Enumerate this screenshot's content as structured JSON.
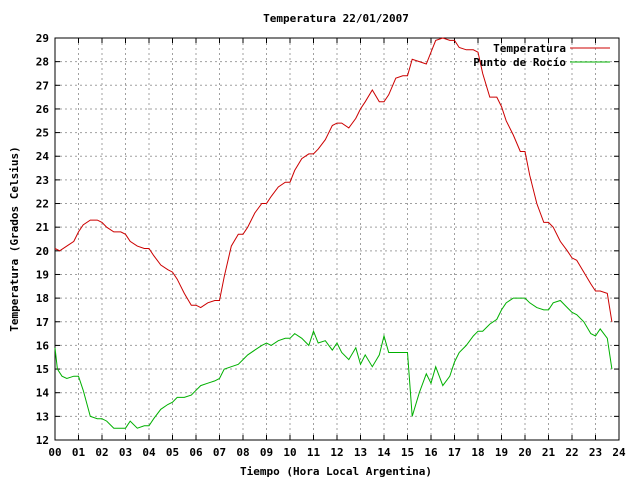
{
  "chart_data": {
    "type": "line",
    "title": "Temperatura 22/01/2007",
    "xlabel": "Tiempo (Hora Local Argentina)",
    "ylabel": "Temperatura (Grados Celsius)",
    "xlim": [
      0,
      24
    ],
    "ylim": [
      12,
      29
    ],
    "xticks": [
      "00",
      "01",
      "02",
      "03",
      "04",
      "05",
      "06",
      "07",
      "08",
      "09",
      "10",
      "11",
      "12",
      "13",
      "14",
      "15",
      "16",
      "17",
      "18",
      "19",
      "20",
      "21",
      "22",
      "23",
      "24"
    ],
    "yticks": [
      "12",
      "13",
      "14",
      "15",
      "16",
      "17",
      "18",
      "19",
      "20",
      "21",
      "22",
      "23",
      "24",
      "25",
      "26",
      "27",
      "28",
      "29"
    ],
    "grid": true,
    "legend_position": "top-right",
    "series": [
      {
        "name": "Temperatura",
        "color": "#cc0000",
        "x": [
          0,
          0.2,
          0.5,
          0.8,
          1.0,
          1.2,
          1.5,
          1.8,
          2.0,
          2.2,
          2.5,
          2.8,
          3.0,
          3.2,
          3.5,
          3.8,
          4.0,
          4.2,
          4.5,
          4.8,
          5.0,
          5.2,
          5.5,
          5.8,
          6.0,
          6.2,
          6.5,
          6.8,
          7.0,
          7.2,
          7.5,
          7.8,
          8.0,
          8.2,
          8.5,
          8.8,
          9.0,
          9.2,
          9.5,
          9.8,
          10.0,
          10.2,
          10.5,
          10.8,
          11.0,
          11.2,
          11.5,
          11.8,
          12.0,
          12.2,
          12.5,
          12.8,
          13.0,
          13.2,
          13.5,
          13.8,
          14.0,
          14.2,
          14.5,
          14.8,
          15.0,
          15.2,
          15.5,
          15.8,
          16.0,
          16.2,
          16.5,
          16.8,
          17.0,
          17.2,
          17.5,
          17.8,
          18.0,
          18.2,
          18.5,
          18.8,
          19.0,
          19.2,
          19.5,
          19.8,
          20.0,
          20.2,
          20.5,
          20.8,
          21.0,
          21.2,
          21.5,
          21.8,
          22.0,
          22.2,
          22.5,
          22.8,
          23.0,
          23.2,
          23.5,
          23.7
        ],
        "y": [
          20.1,
          20.0,
          20.2,
          20.4,
          20.8,
          21.1,
          21.3,
          21.3,
          21.2,
          21.0,
          20.8,
          20.8,
          20.7,
          20.4,
          20.2,
          20.1,
          20.1,
          19.8,
          19.4,
          19.2,
          19.1,
          18.8,
          18.2,
          17.7,
          17.7,
          17.6,
          17.8,
          17.9,
          17.9,
          18.9,
          20.2,
          20.7,
          20.7,
          21.0,
          21.6,
          22.0,
          22.0,
          22.3,
          22.7,
          22.9,
          22.9,
          23.4,
          23.9,
          24.1,
          24.1,
          24.3,
          24.7,
          25.3,
          25.4,
          25.4,
          25.2,
          25.6,
          26.0,
          26.3,
          26.8,
          26.3,
          26.3,
          26.6,
          27.3,
          27.4,
          27.4,
          28.1,
          28.0,
          27.9,
          28.4,
          28.9,
          29.0,
          28.9,
          28.9,
          28.6,
          28.5,
          28.5,
          28.4,
          27.5,
          26.5,
          26.5,
          26.1,
          25.5,
          24.9,
          24.2,
          24.2,
          23.2,
          22.0,
          21.2,
          21.2,
          21.0,
          20.4,
          20.0,
          19.7,
          19.6,
          19.1,
          18.6,
          18.3,
          18.3,
          18.2,
          17.0
        ]
      },
      {
        "name": "Punto de Rocío",
        "color": "#00b000",
        "x": [
          0,
          0.1,
          0.3,
          0.5,
          0.8,
          1.0,
          1.2,
          1.5,
          1.8,
          2.0,
          2.2,
          2.5,
          2.8,
          3.0,
          3.2,
          3.5,
          3.8,
          4.0,
          4.2,
          4.5,
          4.8,
          5.0,
          5.2,
          5.5,
          5.8,
          6.0,
          6.2,
          6.5,
          6.8,
          7.0,
          7.2,
          7.5,
          7.8,
          8.0,
          8.2,
          8.5,
          8.8,
          9.0,
          9.2,
          9.5,
          9.8,
          10.0,
          10.2,
          10.5,
          10.8,
          11.0,
          11.2,
          11.5,
          11.8,
          12.0,
          12.2,
          12.5,
          12.8,
          13.0,
          13.2,
          13.5,
          13.8,
          14.0,
          14.2,
          14.5,
          14.8,
          15.0,
          15.2,
          15.5,
          15.8,
          16.0,
          16.2,
          16.5,
          16.8,
          17.0,
          17.2,
          17.5,
          17.8,
          18.0,
          18.2,
          18.5,
          18.8,
          19.0,
          19.2,
          19.5,
          19.8,
          20.0,
          20.2,
          20.5,
          20.8,
          21.0,
          21.2,
          21.5,
          21.8,
          22.0,
          22.2,
          22.5,
          22.8,
          23.0,
          23.2,
          23.5,
          23.7
        ],
        "y": [
          15.9,
          15.0,
          14.7,
          14.6,
          14.7,
          14.7,
          14.1,
          13.0,
          12.9,
          12.9,
          12.8,
          12.5,
          12.5,
          12.5,
          12.8,
          12.5,
          12.6,
          12.6,
          12.9,
          13.3,
          13.5,
          13.6,
          13.8,
          13.8,
          13.9,
          14.1,
          14.3,
          14.4,
          14.5,
          14.6,
          15.0,
          15.1,
          15.2,
          15.4,
          15.6,
          15.8,
          16.0,
          16.1,
          16.0,
          16.2,
          16.3,
          16.3,
          16.5,
          16.3,
          16.0,
          16.6,
          16.1,
          16.2,
          15.8,
          16.1,
          15.7,
          15.4,
          15.9,
          15.2,
          15.6,
          15.1,
          15.6,
          16.4,
          15.7,
          15.7,
          15.7,
          15.7,
          13.0,
          14.0,
          14.8,
          14.4,
          15.1,
          14.3,
          14.7,
          15.3,
          15.7,
          16.0,
          16.4,
          16.6,
          16.6,
          16.9,
          17.1,
          17.5,
          17.8,
          18.0,
          18.0,
          18.0,
          17.8,
          17.6,
          17.5,
          17.5,
          17.8,
          17.9,
          17.6,
          17.4,
          17.3,
          17.0,
          16.5,
          16.4,
          16.7,
          16.3,
          15.0
        ]
      }
    ]
  }
}
